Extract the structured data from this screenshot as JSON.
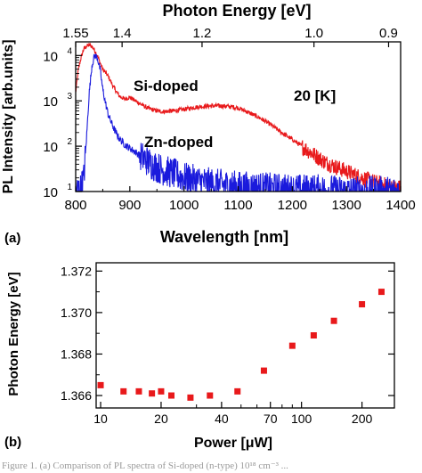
{
  "chart_data": [
    {
      "type": "line",
      "panel_label": "(a)",
      "xlabel": "Wavelength [nm]",
      "ylabel": "PL Intensity [arb.units]",
      "top_xlabel": "Photon Energy [eV]",
      "annotation": "20 [K]",
      "xlim": [
        800,
        1400
      ],
      "ylim": [
        10,
        20000
      ],
      "y_scale": "log",
      "x_ticks": [
        "800",
        "900",
        "1000",
        "1100",
        "1200",
        "1300",
        "1400"
      ],
      "x_tick_values": [
        800,
        900,
        1000,
        1100,
        1200,
        1300,
        1400
      ],
      "y_ticks": [
        {
          "base": "10",
          "exp": "1",
          "value": 10
        },
        {
          "base": "10",
          "exp": "2",
          "value": 100
        },
        {
          "base": "10",
          "exp": "3",
          "value": 1000
        },
        {
          "base": "10",
          "exp": "4",
          "value": 10000
        }
      ],
      "top_ticks": [
        {
          "label": "1.55",
          "energy": 1.55
        },
        {
          "label": "1.4",
          "energy": 1.4
        },
        {
          "label": "1.2",
          "energy": 1.2
        },
        {
          "label": "1.0",
          "energy": 1.0
        },
        {
          "label": "0.9",
          "energy": 0.9
        }
      ],
      "series": [
        {
          "name": "Si-doped",
          "color": "#e8191b",
          "x": [
            800,
            805,
            810,
            815,
            820,
            825,
            830,
            835,
            840,
            845,
            850,
            860,
            870,
            880,
            890,
            900,
            910,
            920,
            930,
            940,
            950,
            960,
            980,
            1000,
            1020,
            1040,
            1060,
            1080,
            1100,
            1120,
            1140,
            1160,
            1180,
            1200,
            1220,
            1240,
            1260,
            1280,
            1300,
            1320,
            1340,
            1360,
            1380,
            1400
          ],
          "y": [
            1500,
            5000,
            9000,
            14000,
            16000,
            17000,
            16000,
            13000,
            10000,
            7000,
            5000,
            3500,
            2000,
            1300,
            1100,
            1200,
            1000,
            850,
            720,
            650,
            600,
            580,
            600,
            650,
            720,
            760,
            780,
            760,
            700,
            550,
            420,
            300,
            200,
            140,
            95,
            65,
            45,
            35,
            28,
            22,
            18,
            15,
            13,
            12
          ]
        },
        {
          "name": "Zn-doped",
          "color": "#1a1adc",
          "x": [
            800,
            810,
            815,
            820,
            825,
            830,
            835,
            840,
            845,
            850,
            855,
            860,
            870,
            880,
            890,
            900,
            910,
            920,
            930,
            940,
            960,
            980,
            1000,
            1050,
            1100,
            1150,
            1200,
            1250,
            1300,
            1350,
            1400
          ],
          "y": [
            10,
            12,
            20,
            150,
            1500,
            6000,
            10000,
            9000,
            5000,
            1800,
            900,
            500,
            250,
            150,
            110,
            90,
            75,
            60,
            50,
            40,
            30,
            25,
            20,
            15,
            13,
            12,
            11,
            11,
            10,
            10,
            10
          ]
        }
      ]
    },
    {
      "type": "scatter",
      "panel_label": "(b)",
      "xlabel": "Power [μW]",
      "ylabel": "Photon Energy [eV]",
      "x_scale": "log",
      "xlim": [
        9.5,
        290
      ],
      "ylim": [
        1.3654,
        1.3724
      ],
      "x_ticks": [
        "10",
        "20",
        "40",
        "70",
        "100",
        "200"
      ],
      "x_tick_values": [
        10,
        20,
        40,
        70,
        100,
        200
      ],
      "y_ticks": [
        "1.366",
        "1.368",
        "1.370",
        "1.372"
      ],
      "y_tick_values": [
        1.366,
        1.368,
        1.37,
        1.372
      ],
      "marker_color": "#e8191b",
      "x": [
        10,
        13,
        15.5,
        18,
        20,
        22.5,
        28,
        35,
        48,
        65,
        90,
        115,
        145,
        200,
        250
      ],
      "y": [
        1.3665,
        1.3662,
        1.3662,
        1.3661,
        1.3662,
        1.366,
        1.3659,
        1.366,
        1.3662,
        1.3672,
        1.3684,
        1.3689,
        1.3696,
        1.3704,
        1.371
      ]
    }
  ],
  "caption": "Figure 1. (a) Comparison of PL spectra of Si-doped (n-type) 10¹⁸ cm⁻³ ..."
}
